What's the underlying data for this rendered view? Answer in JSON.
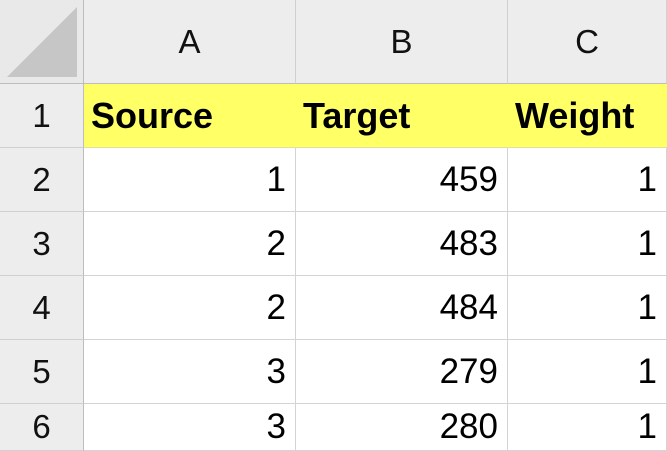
{
  "spreadsheet": {
    "column_headers": [
      "A",
      "B",
      "C"
    ],
    "row_headers": [
      "1",
      "2",
      "3",
      "4",
      "5",
      "6"
    ],
    "header_row": [
      "Source",
      "Target",
      "Weight"
    ],
    "rows": [
      [
        "1",
        "459",
        "1"
      ],
      [
        "2",
        "483",
        "1"
      ],
      [
        "2",
        "484",
        "1"
      ],
      [
        "3",
        "279",
        "1"
      ],
      [
        "3",
        "280",
        "1"
      ]
    ]
  },
  "colors": {
    "header_fill": "#ffff66",
    "heading_bg": "#ededed",
    "gridline": "#d4d4d4"
  }
}
